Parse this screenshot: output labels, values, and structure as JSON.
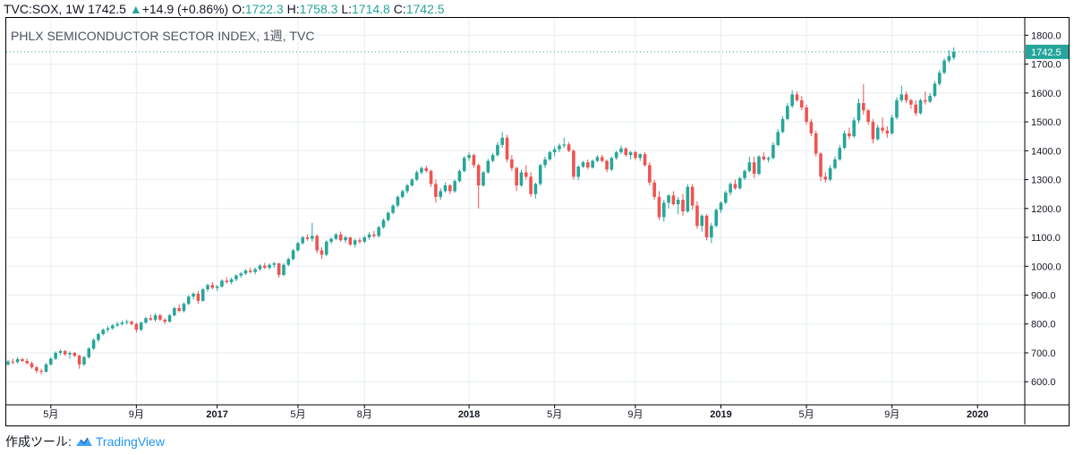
{
  "header": {
    "symbol": "TVC:SOX, 1W",
    "last": "1742.5",
    "change_arrow": "▲",
    "change": "+14.9 (+0.86%)",
    "open_label": "O:",
    "open": "1722.3",
    "high_label": "H:",
    "high": "1758.3",
    "low_label": "L:",
    "low": "1714.8",
    "close_label": "C:",
    "close": "1742.5"
  },
  "chart_title": "PHLX SEMICONDUCTOR SECTOR INDEX, 1週, TVC",
  "footer": {
    "label": "作成ツール:",
    "brand": "TradingView"
  },
  "colors": {
    "up": "#26a69a",
    "down": "#ef5350",
    "grid": "#e6edf2",
    "price_tag": "#26a69a"
  },
  "chart_data": {
    "type": "candlestick",
    "title": "PHLX SEMICONDUCTOR SECTOR INDEX, 1週, TVC",
    "interval": "1W",
    "ylim": [
      520,
      1860
    ],
    "y_ticks": [
      600,
      700,
      800,
      900,
      1000,
      1100,
      1200,
      1300,
      1400,
      1500,
      1600,
      1700,
      1800
    ],
    "y_tick_labels": [
      "600.0",
      "700.0",
      "800.0",
      "900.0",
      "1000.0",
      "1100.0",
      "1200.0",
      "1300.0",
      "1400.0",
      "1500.0",
      "1600.0",
      "1700.0",
      "1800.0"
    ],
    "x_ticks": [
      {
        "label": "5月",
        "index": 9
      },
      {
        "label": "9月",
        "index": 27
      },
      {
        "label": "2017",
        "index": 44
      },
      {
        "label": "5月",
        "index": 61
      },
      {
        "label": "8月",
        "index": 75
      },
      {
        "label": "2018",
        "index": 97
      },
      {
        "label": "5月",
        "index": 115
      },
      {
        "label": "9月",
        "index": 132
      },
      {
        "label": "2019",
        "index": 150
      },
      {
        "label": "5月",
        "index": 168
      },
      {
        "label": "9月",
        "index": 186
      },
      {
        "label": "2020",
        "index": 204
      }
    ],
    "last_price_label": "1742.5",
    "ohlc": [
      [
        660,
        675,
        655,
        670
      ],
      [
        670,
        680,
        660,
        668
      ],
      [
        668,
        685,
        663,
        678
      ],
      [
        678,
        683,
        668,
        672
      ],
      [
        672,
        680,
        660,
        664
      ],
      [
        664,
        670,
        645,
        650
      ],
      [
        650,
        655,
        630,
        638
      ],
      [
        638,
        645,
        625,
        635
      ],
      [
        635,
        665,
        632,
        660
      ],
      [
        660,
        685,
        656,
        680
      ],
      [
        680,
        705,
        675,
        700
      ],
      [
        700,
        712,
        692,
        706
      ],
      [
        706,
        710,
        690,
        695
      ],
      [
        695,
        705,
        680,
        700
      ],
      [
        700,
        703,
        685,
        690
      ],
      [
        690,
        694,
        645,
        660
      ],
      [
        660,
        690,
        655,
        685
      ],
      [
        685,
        720,
        680,
        715
      ],
      [
        715,
        750,
        710,
        745
      ],
      [
        745,
        770,
        738,
        765
      ],
      [
        765,
        785,
        760,
        780
      ],
      [
        780,
        792,
        772,
        785
      ],
      [
        785,
        800,
        780,
        795
      ],
      [
        795,
        808,
        790,
        800
      ],
      [
        800,
        812,
        795,
        805
      ],
      [
        805,
        815,
        798,
        808
      ],
      [
        808,
        812,
        795,
        800
      ],
      [
        800,
        805,
        770,
        780
      ],
      [
        780,
        808,
        775,
        805
      ],
      [
        805,
        825,
        800,
        820
      ],
      [
        820,
        832,
        810,
        815
      ],
      [
        815,
        838,
        808,
        830
      ],
      [
        830,
        835,
        810,
        815
      ],
      [
        815,
        820,
        800,
        808
      ],
      [
        808,
        835,
        805,
        830
      ],
      [
        830,
        860,
        826,
        855
      ],
      [
        855,
        868,
        840,
        845
      ],
      [
        845,
        875,
        840,
        870
      ],
      [
        870,
        900,
        865,
        895
      ],
      [
        895,
        910,
        885,
        905
      ],
      [
        905,
        915,
        870,
        880
      ],
      [
        880,
        925,
        878,
        920
      ],
      [
        920,
        940,
        912,
        935
      ],
      [
        935,
        945,
        920,
        925
      ],
      [
        925,
        935,
        915,
        930
      ],
      [
        930,
        955,
        925,
        950
      ],
      [
        950,
        962,
        940,
        945
      ],
      [
        945,
        960,
        938,
        955
      ],
      [
        955,
        972,
        948,
        968
      ],
      [
        968,
        980,
        960,
        975
      ],
      [
        975,
        990,
        970,
        985
      ],
      [
        985,
        995,
        975,
        980
      ],
      [
        980,
        995,
        972,
        990
      ],
      [
        990,
        1008,
        985,
        1002
      ],
      [
        1002,
        1012,
        990,
        995
      ],
      [
        995,
        1010,
        988,
        1005
      ],
      [
        1005,
        1015,
        995,
        1010
      ],
      [
        1010,
        1012,
        960,
        970
      ],
      [
        970,
        1010,
        965,
        1005
      ],
      [
        1005,
        1030,
        1000,
        1025
      ],
      [
        1025,
        1060,
        1020,
        1055
      ],
      [
        1055,
        1085,
        1050,
        1080
      ],
      [
        1080,
        1105,
        1075,
        1100
      ],
      [
        1100,
        1110,
        1088,
        1095
      ],
      [
        1095,
        1150,
        1085,
        1105
      ],
      [
        1105,
        1110,
        1045,
        1055
      ],
      [
        1055,
        1065,
        1025,
        1040
      ],
      [
        1040,
        1090,
        1035,
        1085
      ],
      [
        1085,
        1100,
        1078,
        1095
      ],
      [
        1095,
        1115,
        1090,
        1110
      ],
      [
        1110,
        1120,
        1085,
        1090
      ],
      [
        1090,
        1105,
        1080,
        1100
      ],
      [
        1100,
        1102,
        1070,
        1075
      ],
      [
        1075,
        1095,
        1065,
        1090
      ],
      [
        1090,
        1098,
        1078,
        1085
      ],
      [
        1085,
        1105,
        1080,
        1100
      ],
      [
        1100,
        1118,
        1092,
        1110
      ],
      [
        1110,
        1122,
        1098,
        1105
      ],
      [
        1105,
        1140,
        1100,
        1135
      ],
      [
        1135,
        1165,
        1130,
        1160
      ],
      [
        1160,
        1190,
        1155,
        1185
      ],
      [
        1185,
        1215,
        1180,
        1210
      ],
      [
        1210,
        1245,
        1205,
        1240
      ],
      [
        1240,
        1265,
        1235,
        1260
      ],
      [
        1260,
        1285,
        1252,
        1280
      ],
      [
        1280,
        1305,
        1275,
        1300
      ],
      [
        1300,
        1332,
        1295,
        1325
      ],
      [
        1325,
        1345,
        1318,
        1340
      ],
      [
        1340,
        1348,
        1325,
        1330
      ],
      [
        1330,
        1335,
        1275,
        1285
      ],
      [
        1285,
        1300,
        1220,
        1240
      ],
      [
        1240,
        1270,
        1230,
        1260
      ],
      [
        1260,
        1290,
        1255,
        1280
      ],
      [
        1280,
        1285,
        1250,
        1260
      ],
      [
        1260,
        1300,
        1255,
        1295
      ],
      [
        1295,
        1335,
        1290,
        1330
      ],
      [
        1330,
        1382,
        1325,
        1375
      ],
      [
        1375,
        1395,
        1365,
        1385
      ],
      [
        1385,
        1390,
        1340,
        1350
      ],
      [
        1350,
        1355,
        1200,
        1280
      ],
      [
        1280,
        1330,
        1275,
        1325
      ],
      [
        1325,
        1372,
        1320,
        1365
      ],
      [
        1365,
        1392,
        1360,
        1385
      ],
      [
        1385,
        1430,
        1380,
        1420
      ],
      [
        1420,
        1465,
        1410,
        1445
      ],
      [
        1445,
        1455,
        1360,
        1370
      ],
      [
        1370,
        1385,
        1330,
        1340
      ],
      [
        1340,
        1345,
        1260,
        1280
      ],
      [
        1280,
        1335,
        1275,
        1325
      ],
      [
        1325,
        1350,
        1300,
        1310
      ],
      [
        1310,
        1325,
        1240,
        1250
      ],
      [
        1250,
        1290,
        1235,
        1285
      ],
      [
        1285,
        1355,
        1280,
        1350
      ],
      [
        1350,
        1380,
        1340,
        1370
      ],
      [
        1370,
        1400,
        1365,
        1395
      ],
      [
        1395,
        1415,
        1380,
        1405
      ],
      [
        1405,
        1425,
        1395,
        1418
      ],
      [
        1418,
        1445,
        1410,
        1422
      ],
      [
        1422,
        1430,
        1395,
        1400
      ],
      [
        1400,
        1405,
        1300,
        1310
      ],
      [
        1310,
        1350,
        1298,
        1345
      ],
      [
        1345,
        1365,
        1340,
        1360
      ],
      [
        1360,
        1370,
        1335,
        1342
      ],
      [
        1342,
        1370,
        1338,
        1365
      ],
      [
        1365,
        1385,
        1360,
        1378
      ],
      [
        1378,
        1385,
        1360,
        1365
      ],
      [
        1365,
        1370,
        1325,
        1335
      ],
      [
        1335,
        1380,
        1330,
        1375
      ],
      [
        1375,
        1400,
        1368,
        1395
      ],
      [
        1395,
        1418,
        1388,
        1408
      ],
      [
        1408,
        1412,
        1380,
        1385
      ],
      [
        1385,
        1400,
        1370,
        1395
      ],
      [
        1395,
        1400,
        1368,
        1375
      ],
      [
        1375,
        1392,
        1365,
        1388
      ],
      [
        1388,
        1395,
        1345,
        1350
      ],
      [
        1350,
        1360,
        1280,
        1290
      ],
      [
        1290,
        1300,
        1230,
        1240
      ],
      [
        1240,
        1260,
        1160,
        1170
      ],
      [
        1170,
        1230,
        1155,
        1220
      ],
      [
        1220,
        1250,
        1200,
        1245
      ],
      [
        1245,
        1260,
        1210,
        1215
      ],
      [
        1215,
        1240,
        1180,
        1230
      ],
      [
        1230,
        1250,
        1175,
        1190
      ],
      [
        1190,
        1285,
        1185,
        1275
      ],
      [
        1275,
        1285,
        1195,
        1210
      ],
      [
        1210,
        1225,
        1130,
        1140
      ],
      [
        1140,
        1180,
        1120,
        1175
      ],
      [
        1175,
        1180,
        1090,
        1100
      ],
      [
        1100,
        1150,
        1080,
        1140
      ],
      [
        1140,
        1200,
        1135,
        1195
      ],
      [
        1195,
        1225,
        1185,
        1220
      ],
      [
        1220,
        1262,
        1215,
        1255
      ],
      [
        1255,
        1290,
        1245,
        1285
      ],
      [
        1285,
        1300,
        1265,
        1270
      ],
      [
        1270,
        1310,
        1265,
        1305
      ],
      [
        1305,
        1335,
        1298,
        1330
      ],
      [
        1330,
        1380,
        1325,
        1360
      ],
      [
        1360,
        1380,
        1305,
        1320
      ],
      [
        1320,
        1385,
        1315,
        1380
      ],
      [
        1380,
        1395,
        1365,
        1370
      ],
      [
        1370,
        1380,
        1360,
        1375
      ],
      [
        1375,
        1430,
        1370,
        1420
      ],
      [
        1420,
        1475,
        1415,
        1465
      ],
      [
        1465,
        1520,
        1460,
        1510
      ],
      [
        1510,
        1565,
        1505,
        1555
      ],
      [
        1555,
        1610,
        1548,
        1595
      ],
      [
        1595,
        1605,
        1570,
        1575
      ],
      [
        1575,
        1590,
        1540,
        1550
      ],
      [
        1550,
        1560,
        1490,
        1500
      ],
      [
        1500,
        1510,
        1450,
        1460
      ],
      [
        1460,
        1470,
        1380,
        1390
      ],
      [
        1390,
        1395,
        1295,
        1310
      ],
      [
        1310,
        1325,
        1290,
        1300
      ],
      [
        1300,
        1350,
        1295,
        1340
      ],
      [
        1340,
        1380,
        1335,
        1370
      ],
      [
        1370,
        1420,
        1365,
        1410
      ],
      [
        1410,
        1470,
        1405,
        1460
      ],
      [
        1460,
        1480,
        1440,
        1450
      ],
      [
        1450,
        1515,
        1445,
        1505
      ],
      [
        1505,
        1580,
        1495,
        1565
      ],
      [
        1565,
        1630,
        1525,
        1540
      ],
      [
        1540,
        1545,
        1490,
        1500
      ],
      [
        1500,
        1510,
        1425,
        1440
      ],
      [
        1440,
        1490,
        1435,
        1480
      ],
      [
        1480,
        1515,
        1460,
        1470
      ],
      [
        1470,
        1485,
        1445,
        1460
      ],
      [
        1460,
        1525,
        1455,
        1515
      ],
      [
        1515,
        1585,
        1508,
        1575
      ],
      [
        1575,
        1625,
        1568,
        1595
      ],
      [
        1595,
        1605,
        1565,
        1575
      ],
      [
        1575,
        1580,
        1545,
        1560
      ],
      [
        1560,
        1575,
        1520,
        1530
      ],
      [
        1530,
        1580,
        1525,
        1575
      ],
      [
        1575,
        1605,
        1560,
        1570
      ],
      [
        1570,
        1600,
        1565,
        1590
      ],
      [
        1590,
        1640,
        1585,
        1632
      ],
      [
        1632,
        1680,
        1625,
        1670
      ],
      [
        1670,
        1720,
        1665,
        1712
      ],
      [
        1712,
        1748,
        1705,
        1728
      ],
      [
        1722.3,
        1758.3,
        1714.8,
        1742.5
      ]
    ]
  }
}
